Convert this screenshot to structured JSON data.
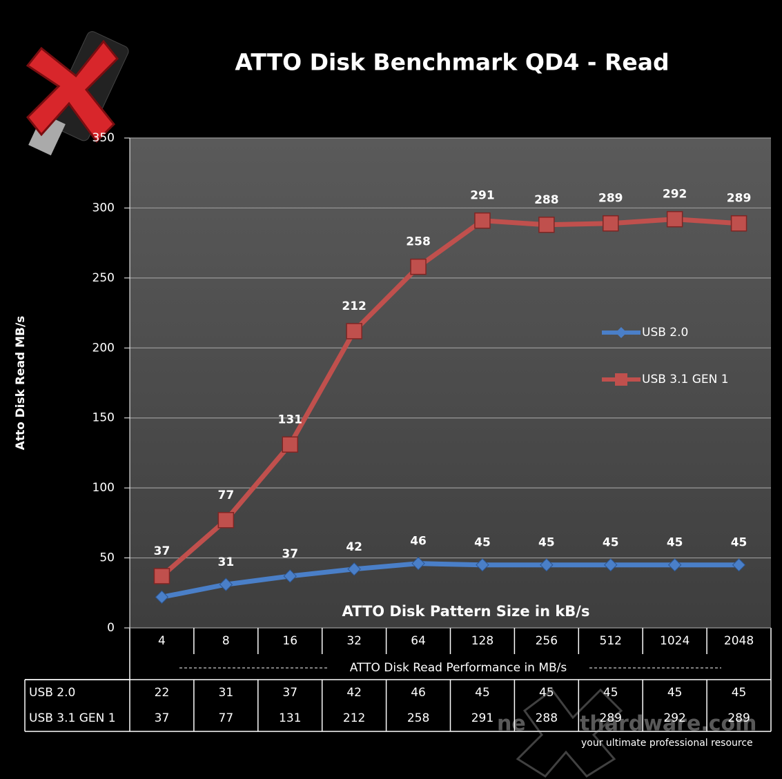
{
  "chart_data": {
    "type": "line",
    "title": "ATTO Disk Benchmark QD4 - Read",
    "y_label": "Atto Disk Read  MB/s",
    "x_label": "ATTO Disk Pattern Size in kB/s",
    "table_title": "ATTO Disk Read Performance in MB/s",
    "categories": [
      "4",
      "8",
      "16",
      "32",
      "64",
      "128",
      "256",
      "512",
      "1024",
      "2048"
    ],
    "series": [
      {
        "name": "USB 2.0",
        "color": "#4a7fc8",
        "marker": "diamond",
        "values": [
          22,
          31,
          37,
          42,
          46,
          45,
          45,
          45,
          45,
          45
        ]
      },
      {
        "name": "USB 3.1 GEN 1",
        "color": "#c0504d",
        "marker": "square",
        "values": [
          37,
          77,
          131,
          212,
          258,
          291,
          288,
          289,
          292,
          289
        ]
      }
    ],
    "ylim": [
      0,
      350
    ],
    "yticks": [
      0,
      50,
      100,
      150,
      200,
      250,
      300,
      350
    ],
    "grid": true,
    "legend": "right",
    "watermark": {
      "left": "ne",
      "right": "thardware.com",
      "tagline": "your ultimate professional resource"
    }
  }
}
